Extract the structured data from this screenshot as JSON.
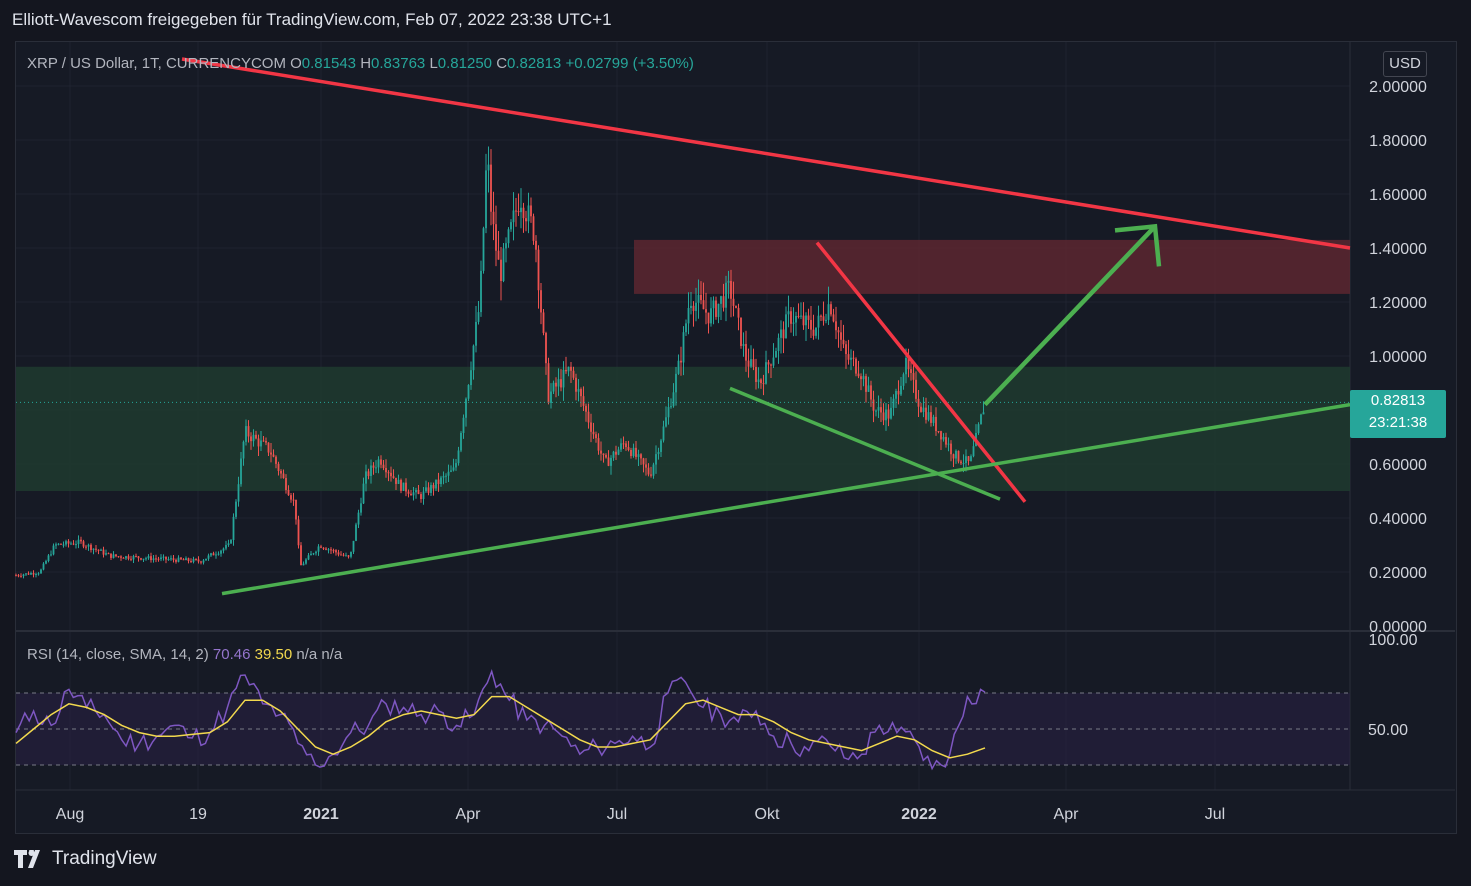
{
  "header": {
    "title": "Elliott-Wavescom freigegeben für TradingView.com, Feb 07, 2022 23:38 UTC+1"
  },
  "legend": {
    "symbol": "XRP / US Dollar, 1T, CURRENCYCOM",
    "open_label": "O",
    "open": "0.81543",
    "high_label": "H",
    "high": "0.83763",
    "low_label": "L",
    "low": "0.81250",
    "close_label": "C",
    "close": "0.82813",
    "change": "+0.02799 (+3.50%)"
  },
  "currency_button": "USD",
  "last_price": {
    "value": "0.82813",
    "countdown": "23:21:38"
  },
  "rsi_legend": {
    "label": "RSI (14, close, SMA, 14, 2)",
    "rsi": "70.46",
    "sma": "39.50",
    "na1": "n/a",
    "na2": "n/a"
  },
  "footer": {
    "brand": "TradingView"
  },
  "colors": {
    "up": "#26a69a",
    "down": "#ef5350",
    "trend_red": "#f23645",
    "trend_green": "#4caf50",
    "rsi": "#7e57c2",
    "rsi_ma": "#f2d94e",
    "resistance_zone": "#5c2730",
    "support_zone": "#1e3b2f"
  },
  "chart_data": [
    {
      "type": "candlestick",
      "title": "XRP / US Dollar, 1T, CURRENCYCOM",
      "x_tick_labels": [
        "Aug",
        "19",
        "2021",
        "Apr",
        "Jul",
        "Okt",
        "2022",
        "Apr",
        "Jul"
      ],
      "y_tick_labels": [
        "2.00000",
        "1.80000",
        "1.60000",
        "1.40000",
        "1.20000",
        "1.00000",
        "0.60000",
        "0.40000",
        "0.20000",
        "0.00000"
      ],
      "ylim": [
        0,
        2.1
      ],
      "price_path": [
        [
          0,
          0.18
        ],
        [
          40,
          0.2
        ],
        [
          55,
          0.3
        ],
        [
          80,
          0.31
        ],
        [
          110,
          0.26
        ],
        [
          200,
          0.24
        ],
        [
          230,
          0.3
        ],
        [
          245,
          0.72
        ],
        [
          270,
          0.65
        ],
        [
          295,
          0.45
        ],
        [
          300,
          0.22
        ],
        [
          320,
          0.3
        ],
        [
          350,
          0.25
        ],
        [
          365,
          0.55
        ],
        [
          380,
          0.62
        ],
        [
          400,
          0.52
        ],
        [
          420,
          0.48
        ],
        [
          455,
          0.58
        ],
        [
          470,
          0.95
        ],
        [
          480,
          1.2
        ],
        [
          487,
          1.75
        ],
        [
          492,
          1.5
        ],
        [
          500,
          1.3
        ],
        [
          520,
          1.6
        ],
        [
          535,
          1.45
        ],
        [
          548,
          0.85
        ],
        [
          570,
          0.95
        ],
        [
          590,
          0.75
        ],
        [
          605,
          0.6
        ],
        [
          625,
          0.68
        ],
        [
          650,
          0.56
        ],
        [
          665,
          0.75
        ],
        [
          680,
          0.98
        ],
        [
          690,
          1.22
        ],
        [
          710,
          1.15
        ],
        [
          730,
          1.25
        ],
        [
          745,
          1.0
        ],
        [
          760,
          0.9
        ],
        [
          790,
          1.15
        ],
        [
          815,
          1.1
        ],
        [
          830,
          1.2
        ],
        [
          845,
          1.0
        ],
        [
          860,
          0.95
        ],
        [
          875,
          0.8
        ],
        [
          890,
          0.78
        ],
        [
          905,
          0.97
        ],
        [
          920,
          0.82
        ],
        [
          940,
          0.72
        ],
        [
          955,
          0.63
        ],
        [
          970,
          0.6
        ],
        [
          985,
          0.83
        ]
      ],
      "last": 0.82813,
      "annotations": {
        "resistance_zone": [
          1.23,
          1.43
        ],
        "support_zone": [
          0.5,
          0.96
        ],
        "trendlines": [
          {
            "color": "red",
            "from": [
              182,
              2.1
            ],
            "to": [
              1350,
              1.4
            ]
          },
          {
            "color": "red",
            "from": [
              817,
              1.42
            ],
            "to": [
              1025,
              0.46
            ]
          },
          {
            "color": "green",
            "from": [
              222,
              0.12
            ],
            "to": [
              1350,
              0.82
            ]
          },
          {
            "color": "green",
            "from": [
              730,
              0.88
            ],
            "to": [
              1000,
              0.47
            ]
          }
        ],
        "projection_arrow": {
          "from": [
            985,
            0.82
          ],
          "to": [
            1155,
            1.48
          ]
        }
      }
    },
    {
      "type": "line",
      "title": "RSI (14, close, SMA, 14, 2)",
      "y_tick_labels": [
        "100.00",
        "50.00"
      ],
      "ylim": [
        0,
        100
      ],
      "bands": [
        30,
        50,
        70
      ],
      "series": [
        {
          "name": "RSI",
          "values": [
            48,
            60,
            52,
            72,
            62,
            58,
            44,
            42,
            46,
            52,
            45,
            48,
            62,
            80,
            64,
            58,
            42,
            30,
            36,
            48,
            52,
            64,
            62,
            58,
            60,
            52,
            58,
            82,
            66,
            55,
            52,
            46,
            36,
            40,
            42,
            46,
            40,
            70,
            76,
            62,
            58,
            54,
            60,
            46,
            42,
            38,
            44,
            34,
            36,
            52,
            48,
            44,
            28,
            36,
            68,
            70.46
          ]
        },
        {
          "name": "SMA",
          "values": [
            42,
            50,
            58,
            64,
            62,
            58,
            52,
            48,
            46,
            46,
            47,
            48,
            54,
            66,
            66,
            60,
            50,
            40,
            36,
            40,
            46,
            54,
            58,
            60,
            58,
            56,
            58,
            68,
            68,
            62,
            56,
            50,
            44,
            40,
            40,
            42,
            44,
            54,
            64,
            66,
            62,
            58,
            58,
            54,
            48,
            44,
            42,
            40,
            38,
            42,
            46,
            44,
            38,
            34,
            36,
            39.5
          ]
        }
      ]
    }
  ]
}
